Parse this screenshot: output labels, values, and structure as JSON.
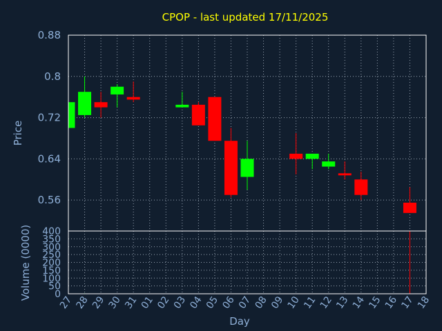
{
  "colors": {
    "background": "#111e2e",
    "up": "#00ff00",
    "down": "#ff0000",
    "title": "#ffff00",
    "text": "#8fb0d8",
    "grid": "#9aa6b4",
    "frame": "#ffffff"
  },
  "chart_data": {
    "type": "candlestick",
    "title": "CPOP - last updated 17/11/2025",
    "xlabel": "Day",
    "ylabel": "Price",
    "volume_label": "Volume (0000)",
    "x_ticks": [
      "27",
      "28",
      "29",
      "30",
      "31",
      "01",
      "02",
      "03",
      "04",
      "05",
      "06",
      "07",
      "08",
      "09",
      "10",
      "11",
      "12",
      "13",
      "14",
      "15",
      "16",
      "17",
      "18"
    ],
    "price_ticks": [
      "0.88",
      "0.8",
      "0.72",
      "0.64",
      "0.56"
    ],
    "price_tick_values": [
      0.88,
      0.8,
      0.72,
      0.64,
      0.56
    ],
    "ylim": [
      0.5,
      0.88
    ],
    "volume_ticks": [
      "400",
      "350",
      "300",
      "250",
      "200",
      "150",
      "100",
      "50",
      "0"
    ],
    "volume_tick_values": [
      400,
      350,
      300,
      250,
      200,
      150,
      100,
      50,
      0
    ],
    "volume_lim": [
      0,
      400
    ],
    "grid": true,
    "candles": [
      {
        "day": "27",
        "open": 0.7,
        "high": 0.75,
        "low": 0.7,
        "close": 0.75,
        "volume": 0
      },
      {
        "day": "28",
        "open": 0.725,
        "high": 0.8,
        "low": 0.72,
        "close": 0.77,
        "volume": 3
      },
      {
        "day": "29",
        "open": 0.75,
        "high": 0.77,
        "low": 0.72,
        "close": 0.74,
        "volume": 1
      },
      {
        "day": "30",
        "open": 0.765,
        "high": 0.785,
        "low": 0.74,
        "close": 0.78,
        "volume": 1
      },
      {
        "day": "31",
        "open": 0.76,
        "high": 0.79,
        "low": 0.75,
        "close": 0.755,
        "volume": 1
      },
      {
        "day": "03",
        "open": 0.74,
        "high": 0.77,
        "low": 0.74,
        "close": 0.745,
        "volume": 0
      },
      {
        "day": "04",
        "open": 0.745,
        "high": 0.75,
        "low": 0.705,
        "close": 0.705,
        "volume": 1
      },
      {
        "day": "05",
        "open": 0.76,
        "high": 0.76,
        "low": 0.675,
        "close": 0.675,
        "volume": 2
      },
      {
        "day": "06",
        "open": 0.675,
        "high": 0.7,
        "low": 0.565,
        "close": 0.57,
        "volume": 2
      },
      {
        "day": "07",
        "open": 0.605,
        "high": 0.675,
        "low": 0.58,
        "close": 0.64,
        "volume": 1
      },
      {
        "day": "10",
        "open": 0.65,
        "high": 0.69,
        "low": 0.61,
        "close": 0.64,
        "volume": 0
      },
      {
        "day": "11",
        "open": 0.64,
        "high": 0.65,
        "low": 0.62,
        "close": 0.65,
        "volume": 0
      },
      {
        "day": "12",
        "open": 0.625,
        "high": 0.65,
        "low": 0.62,
        "close": 0.635,
        "volume": 0
      },
      {
        "day": "13",
        "open": 0.612,
        "high": 0.635,
        "low": 0.6,
        "close": 0.608,
        "volume": 0
      },
      {
        "day": "14",
        "open": 0.6,
        "high": 0.615,
        "low": 0.56,
        "close": 0.57,
        "volume": 0
      },
      {
        "day": "17",
        "open": 0.555,
        "high": 0.585,
        "low": 0.535,
        "close": 0.535,
        "volume": 400
      }
    ]
  }
}
